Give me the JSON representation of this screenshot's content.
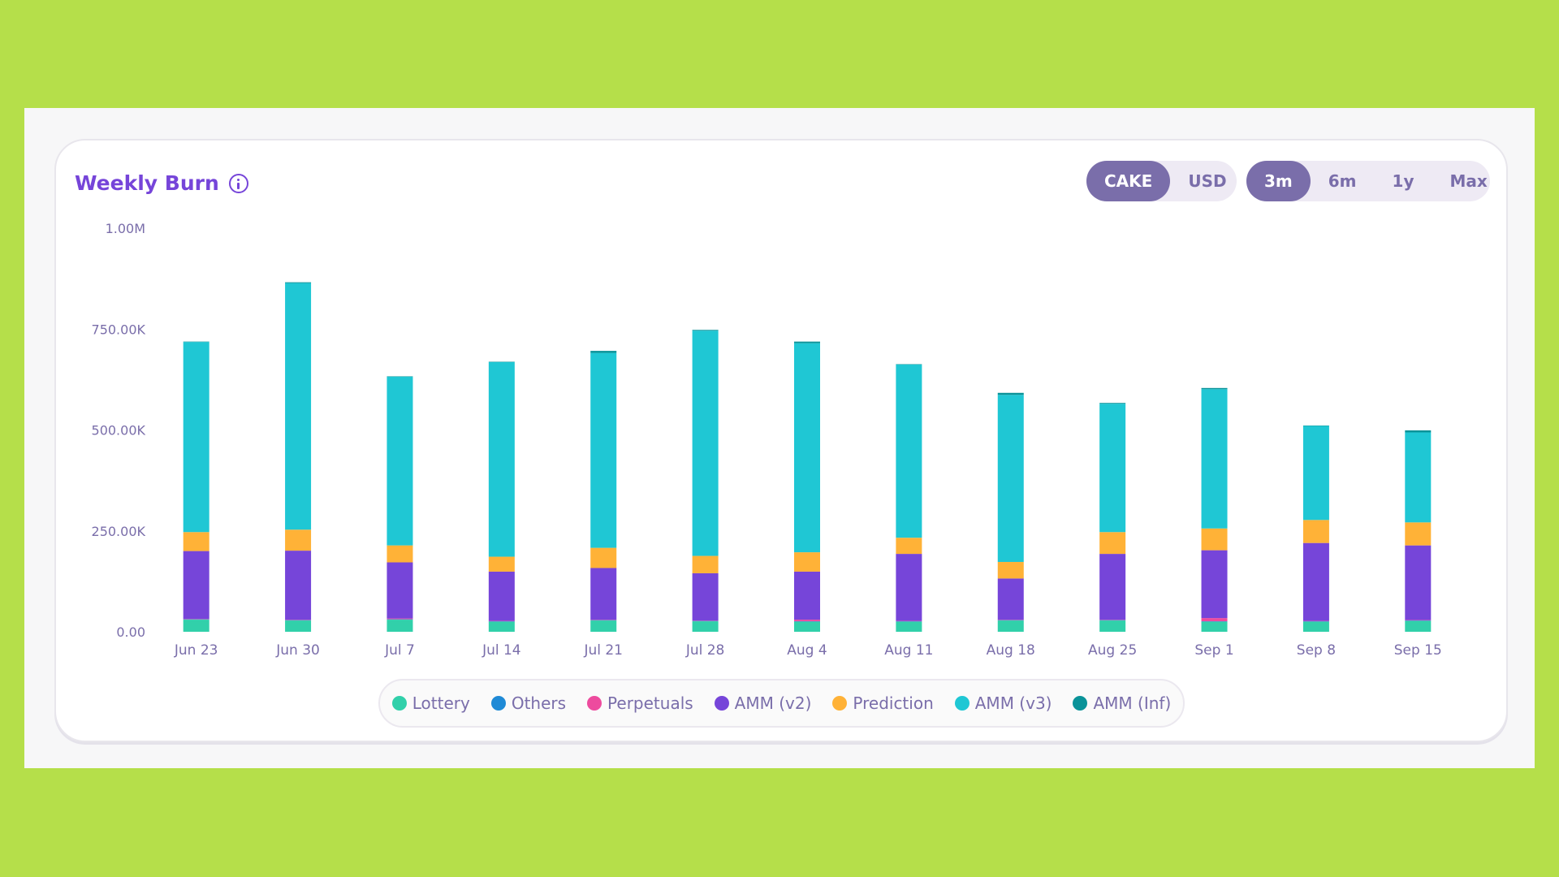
{
  "header": {
    "title": "Weekly Burn",
    "currency_toggle": {
      "options": [
        "CAKE",
        "USD"
      ],
      "selected": "CAKE"
    },
    "range_toggle": {
      "options": [
        "3m",
        "6m",
        "1y",
        "Max"
      ],
      "selected": "3m"
    }
  },
  "colors": {
    "title": "#7645d9",
    "toggle_active": "#7a6eaa",
    "Lottery": "#31d0aa",
    "Others": "#1f8ad6",
    "Perpetuals": "#ed4b9e",
    "AMM (v2)": "#7645d9",
    "Prediction": "#ffb237",
    "AMM (v3)": "#1fc7d4",
    "AMM (Inf)": "#0a9399"
  },
  "chart_data": {
    "type": "bar",
    "stacked": true,
    "title": "Weekly Burn",
    "categories": [
      "Jun 23",
      "Jun 30",
      "Jul 7",
      "Jul 14",
      "Jul 21",
      "Jul 28",
      "Aug 4",
      "Aug 11",
      "Aug 18",
      "Aug 25",
      "Sep 1",
      "Sep 8",
      "Sep 15"
    ],
    "ylim": [
      0,
      1000000
    ],
    "yticks": [
      0,
      250000,
      500000,
      750000,
      1000000
    ],
    "ytick_labels": [
      "0.00",
      "250.00K",
      "500.00K",
      "750.00K",
      "1.00M"
    ],
    "legend_position": "bottom-center",
    "series": [
      {
        "name": "Lottery",
        "values": [
          30000,
          28000,
          30000,
          25000,
          28000,
          26000,
          25000,
          25000,
          28000,
          28000,
          25000,
          25000,
          27000
        ]
      },
      {
        "name": "Others",
        "values": [
          1000,
          1000,
          1000,
          1000,
          1000,
          1000,
          1000,
          1000,
          1000,
          1000,
          1000,
          1000,
          1000
        ]
      },
      {
        "name": "Perpetuals",
        "values": [
          1000,
          1000,
          2000,
          1000,
          1000,
          1000,
          4000,
          1000,
          1000,
          1000,
          8000,
          1000,
          1000
        ]
      },
      {
        "name": "AMM (v2)",
        "values": [
          168000,
          171000,
          139000,
          122000,
          128000,
          117000,
          119000,
          166000,
          102000,
          163000,
          168000,
          193000,
          185000
        ]
      },
      {
        "name": "Prediction",
        "values": [
          47000,
          52000,
          42000,
          37000,
          50000,
          43000,
          48000,
          40000,
          41000,
          54000,
          54000,
          57000,
          57000
        ]
      },
      {
        "name": "AMM (v3)",
        "values": [
          471000,
          611000,
          418000,
          482000,
          483000,
          558000,
          518000,
          429000,
          414000,
          318000,
          345000,
          233000,
          223000
        ]
      },
      {
        "name": "AMM (Inf)",
        "values": [
          1000,
          2000,
          1000,
          1000,
          5000,
          2000,
          4000,
          1000,
          5000,
          2000,
          3000,
          1000,
          5000
        ]
      }
    ]
  }
}
